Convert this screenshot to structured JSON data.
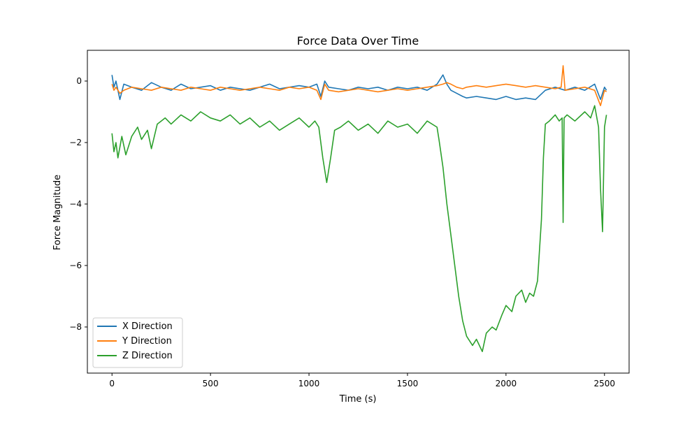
{
  "chart_data": {
    "type": "line",
    "title": "Force Data Over Time",
    "xlabel": "Time (s)",
    "ylabel": "Force Magnitude",
    "xlim": [
      -125,
      2625
    ],
    "ylim": [
      -9.5,
      1.0
    ],
    "xticks": [
      0,
      500,
      1000,
      1500,
      2000,
      2500
    ],
    "xtick_labels": [
      "0",
      "500",
      "1000",
      "1500",
      "2000",
      "2500"
    ],
    "yticks": [
      0,
      -2,
      -4,
      -6,
      -8
    ],
    "ytick_labels": [
      "0",
      "−2",
      "−4",
      "−6",
      "−8"
    ],
    "grid": false,
    "legend_position": "lower-left",
    "series": [
      {
        "name": "X Direction",
        "color": "#1f77b4",
        "x": [
          0,
          10,
          20,
          40,
          60,
          100,
          150,
          200,
          250,
          300,
          350,
          400,
          450,
          500,
          550,
          600,
          650,
          700,
          750,
          800,
          850,
          900,
          950,
          1000,
          1040,
          1060,
          1080,
          1100,
          1150,
          1200,
          1250,
          1300,
          1350,
          1400,
          1450,
          1500,
          1550,
          1600,
          1650,
          1680,
          1700,
          1720,
          1750,
          1780,
          1800,
          1850,
          1900,
          1950,
          2000,
          2050,
          2100,
          2150,
          2200,
          2250,
          2300,
          2350,
          2400,
          2450,
          2480,
          2500,
          2510
        ],
        "y": [
          0.2,
          -0.2,
          0.0,
          -0.6,
          -0.1,
          -0.2,
          -0.3,
          -0.05,
          -0.2,
          -0.3,
          -0.1,
          -0.25,
          -0.2,
          -0.15,
          -0.3,
          -0.2,
          -0.25,
          -0.3,
          -0.2,
          -0.1,
          -0.25,
          -0.2,
          -0.15,
          -0.2,
          -0.1,
          -0.5,
          0.0,
          -0.2,
          -0.25,
          -0.3,
          -0.2,
          -0.25,
          -0.2,
          -0.3,
          -0.2,
          -0.25,
          -0.2,
          -0.3,
          -0.1,
          0.2,
          -0.1,
          -0.3,
          -0.4,
          -0.5,
          -0.55,
          -0.5,
          -0.55,
          -0.6,
          -0.5,
          -0.6,
          -0.55,
          -0.6,
          -0.3,
          -0.2,
          -0.3,
          -0.2,
          -0.3,
          -0.1,
          -0.6,
          -0.2,
          -0.3
        ]
      },
      {
        "name": "Y Direction",
        "color": "#ff7f0e",
        "x": [
          0,
          10,
          20,
          40,
          60,
          100,
          150,
          200,
          250,
          300,
          350,
          400,
          450,
          500,
          550,
          600,
          650,
          700,
          750,
          800,
          850,
          900,
          950,
          1000,
          1040,
          1060,
          1080,
          1100,
          1150,
          1200,
          1250,
          1300,
          1350,
          1400,
          1450,
          1500,
          1550,
          1600,
          1650,
          1680,
          1700,
          1720,
          1750,
          1780,
          1800,
          1850,
          1900,
          1950,
          2000,
          2050,
          2100,
          2150,
          2200,
          2250,
          2280,
          2290,
          2300,
          2350,
          2400,
          2450,
          2480,
          2500,
          2510
        ],
        "y": [
          -0.1,
          -0.3,
          -0.2,
          -0.4,
          -0.3,
          -0.2,
          -0.25,
          -0.3,
          -0.2,
          -0.25,
          -0.3,
          -0.2,
          -0.25,
          -0.3,
          -0.2,
          -0.25,
          -0.3,
          -0.25,
          -0.2,
          -0.25,
          -0.3,
          -0.2,
          -0.25,
          -0.2,
          -0.3,
          -0.6,
          -0.1,
          -0.3,
          -0.35,
          -0.3,
          -0.25,
          -0.3,
          -0.35,
          -0.3,
          -0.25,
          -0.3,
          -0.25,
          -0.2,
          -0.15,
          -0.1,
          -0.05,
          -0.1,
          -0.2,
          -0.25,
          -0.2,
          -0.15,
          -0.2,
          -0.15,
          -0.1,
          -0.15,
          -0.2,
          -0.15,
          -0.2,
          -0.25,
          -0.2,
          0.5,
          -0.3,
          -0.25,
          -0.2,
          -0.3,
          -0.8,
          -0.3,
          -0.35
        ]
      },
      {
        "name": "Z Direction",
        "color": "#2ca02c",
        "x": [
          0,
          10,
          20,
          30,
          50,
          70,
          100,
          130,
          150,
          180,
          200,
          230,
          250,
          270,
          300,
          350,
          400,
          450,
          500,
          550,
          600,
          650,
          700,
          750,
          800,
          850,
          900,
          950,
          1000,
          1030,
          1050,
          1070,
          1090,
          1110,
          1130,
          1160,
          1200,
          1250,
          1300,
          1350,
          1400,
          1450,
          1500,
          1550,
          1600,
          1650,
          1660,
          1680,
          1700,
          1720,
          1740,
          1760,
          1780,
          1800,
          1830,
          1850,
          1880,
          1900,
          1930,
          1950,
          1980,
          2000,
          2030,
          2050,
          2080,
          2100,
          2120,
          2140,
          2160,
          2170,
          2180,
          2190,
          2200,
          2220,
          2250,
          2270,
          2285,
          2290,
          2295,
          2310,
          2350,
          2400,
          2430,
          2450,
          2470,
          2480,
          2490,
          2500,
          2510
        ],
        "y": [
          -1.7,
          -2.3,
          -2.0,
          -2.5,
          -1.8,
          -2.4,
          -1.8,
          -1.5,
          -1.9,
          -1.6,
          -2.2,
          -1.4,
          -1.3,
          -1.2,
          -1.4,
          -1.1,
          -1.3,
          -1.0,
          -1.2,
          -1.3,
          -1.1,
          -1.4,
          -1.2,
          -1.5,
          -1.3,
          -1.6,
          -1.4,
          -1.2,
          -1.5,
          -1.3,
          -1.5,
          -2.5,
          -3.3,
          -2.5,
          -1.6,
          -1.5,
          -1.3,
          -1.6,
          -1.4,
          -1.7,
          -1.3,
          -1.5,
          -1.4,
          -1.7,
          -1.3,
          -1.5,
          -1.9,
          -2.8,
          -4.0,
          -5.0,
          -6.0,
          -7.0,
          -7.8,
          -8.3,
          -8.6,
          -8.4,
          -8.8,
          -8.2,
          -8.0,
          -8.1,
          -7.6,
          -7.3,
          -7.5,
          -7.0,
          -6.8,
          -7.2,
          -6.9,
          -7.0,
          -6.5,
          -5.5,
          -4.5,
          -2.5,
          -1.4,
          -1.3,
          -1.1,
          -1.3,
          -1.2,
          -4.6,
          -1.2,
          -1.1,
          -1.3,
          -1.0,
          -1.2,
          -0.8,
          -1.5,
          -3.5,
          -4.9,
          -1.5,
          -1.1
        ]
      }
    ]
  }
}
